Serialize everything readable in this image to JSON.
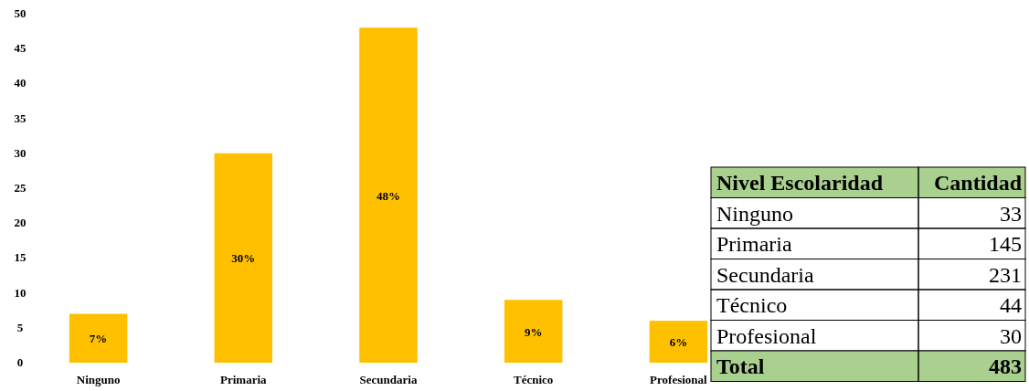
{
  "chart_data": [
    {
      "type": "bar",
      "categories": [
        "Ninguno",
        "Primaria",
        "Secundaria",
        "Técnico",
        "Profesional"
      ],
      "values": [
        7,
        30,
        48,
        9,
        6
      ],
      "value_labels": [
        "7%",
        "30%",
        "48%",
        "9%",
        "6%"
      ],
      "color": "#ffc000",
      "ylim": [
        0,
        50
      ],
      "yticks": [
        0,
        5,
        10,
        15,
        20,
        25,
        30,
        35,
        40,
        45,
        50
      ],
      "grid": false
    },
    {
      "type": "other",
      "categories": [
        "Ninguno",
        "Primaria",
        "Secundaria",
        "Técnico",
        "Profesional"
      ],
      "values": [
        33,
        145,
        231,
        44,
        30
      ],
      "data_labels": true,
      "annotations": [
        "Nivel Escolaridad",
        "Cantidad",
        "Total",
        "483"
      ],
      "color": "#a9d08e"
    }
  ]
}
